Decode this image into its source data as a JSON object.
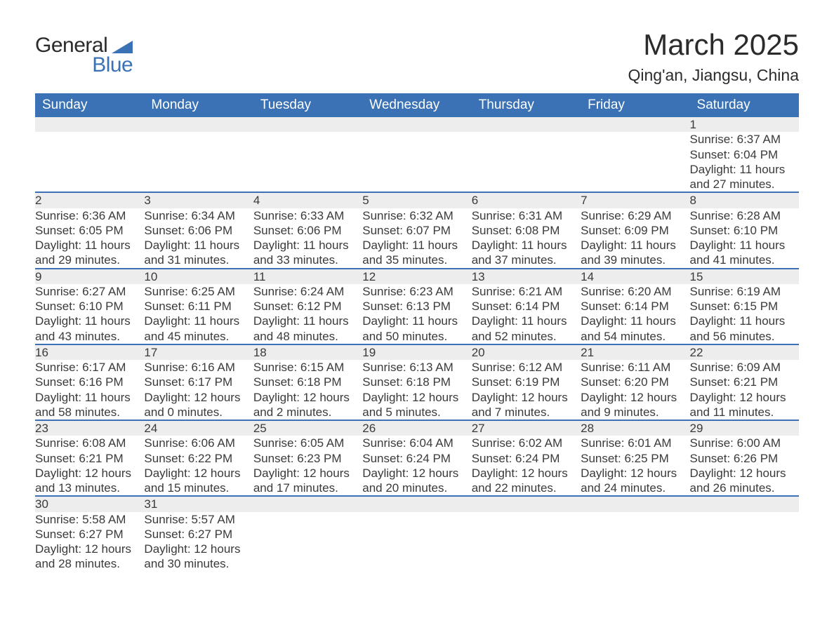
{
  "logo": {
    "line1": "General",
    "line2": "Blue"
  },
  "title": {
    "month": "March 2025",
    "location": "Qing'an, Jiangsu, China"
  },
  "columns": [
    "Sunday",
    "Monday",
    "Tuesday",
    "Wednesday",
    "Thursday",
    "Friday",
    "Saturday"
  ],
  "colors": {
    "header_bg": "#3a72b5",
    "header_text": "#ffffff",
    "daynum_bg": "#ededed",
    "row_divider": "#3a72b5",
    "body_text": "#3a3a3a",
    "logo_blue": "#3a72b5"
  },
  "typography": {
    "title_fontsize_pt": 32,
    "location_fontsize_pt": 17,
    "header_fontsize_pt": 14,
    "cell_fontsize_pt": 13
  },
  "weeks": [
    [
      null,
      null,
      null,
      null,
      null,
      null,
      {
        "day": "1",
        "sunrise": "Sunrise: 6:37 AM",
        "sunset": "Sunset: 6:04 PM",
        "daylight1": "Daylight: 11 hours",
        "daylight2": "and 27 minutes."
      }
    ],
    [
      {
        "day": "2",
        "sunrise": "Sunrise: 6:36 AM",
        "sunset": "Sunset: 6:05 PM",
        "daylight1": "Daylight: 11 hours",
        "daylight2": "and 29 minutes."
      },
      {
        "day": "3",
        "sunrise": "Sunrise: 6:34 AM",
        "sunset": "Sunset: 6:06 PM",
        "daylight1": "Daylight: 11 hours",
        "daylight2": "and 31 minutes."
      },
      {
        "day": "4",
        "sunrise": "Sunrise: 6:33 AM",
        "sunset": "Sunset: 6:06 PM",
        "daylight1": "Daylight: 11 hours",
        "daylight2": "and 33 minutes."
      },
      {
        "day": "5",
        "sunrise": "Sunrise: 6:32 AM",
        "sunset": "Sunset: 6:07 PM",
        "daylight1": "Daylight: 11 hours",
        "daylight2": "and 35 minutes."
      },
      {
        "day": "6",
        "sunrise": "Sunrise: 6:31 AM",
        "sunset": "Sunset: 6:08 PM",
        "daylight1": "Daylight: 11 hours",
        "daylight2": "and 37 minutes."
      },
      {
        "day": "7",
        "sunrise": "Sunrise: 6:29 AM",
        "sunset": "Sunset: 6:09 PM",
        "daylight1": "Daylight: 11 hours",
        "daylight2": "and 39 minutes."
      },
      {
        "day": "8",
        "sunrise": "Sunrise: 6:28 AM",
        "sunset": "Sunset: 6:10 PM",
        "daylight1": "Daylight: 11 hours",
        "daylight2": "and 41 minutes."
      }
    ],
    [
      {
        "day": "9",
        "sunrise": "Sunrise: 6:27 AM",
        "sunset": "Sunset: 6:10 PM",
        "daylight1": "Daylight: 11 hours",
        "daylight2": "and 43 minutes."
      },
      {
        "day": "10",
        "sunrise": "Sunrise: 6:25 AM",
        "sunset": "Sunset: 6:11 PM",
        "daylight1": "Daylight: 11 hours",
        "daylight2": "and 45 minutes."
      },
      {
        "day": "11",
        "sunrise": "Sunrise: 6:24 AM",
        "sunset": "Sunset: 6:12 PM",
        "daylight1": "Daylight: 11 hours",
        "daylight2": "and 48 minutes."
      },
      {
        "day": "12",
        "sunrise": "Sunrise: 6:23 AM",
        "sunset": "Sunset: 6:13 PM",
        "daylight1": "Daylight: 11 hours",
        "daylight2": "and 50 minutes."
      },
      {
        "day": "13",
        "sunrise": "Sunrise: 6:21 AM",
        "sunset": "Sunset: 6:14 PM",
        "daylight1": "Daylight: 11 hours",
        "daylight2": "and 52 minutes."
      },
      {
        "day": "14",
        "sunrise": "Sunrise: 6:20 AM",
        "sunset": "Sunset: 6:14 PM",
        "daylight1": "Daylight: 11 hours",
        "daylight2": "and 54 minutes."
      },
      {
        "day": "15",
        "sunrise": "Sunrise: 6:19 AM",
        "sunset": "Sunset: 6:15 PM",
        "daylight1": "Daylight: 11 hours",
        "daylight2": "and 56 minutes."
      }
    ],
    [
      {
        "day": "16",
        "sunrise": "Sunrise: 6:17 AM",
        "sunset": "Sunset: 6:16 PM",
        "daylight1": "Daylight: 11 hours",
        "daylight2": "and 58 minutes."
      },
      {
        "day": "17",
        "sunrise": "Sunrise: 6:16 AM",
        "sunset": "Sunset: 6:17 PM",
        "daylight1": "Daylight: 12 hours",
        "daylight2": "and 0 minutes."
      },
      {
        "day": "18",
        "sunrise": "Sunrise: 6:15 AM",
        "sunset": "Sunset: 6:18 PM",
        "daylight1": "Daylight: 12 hours",
        "daylight2": "and 2 minutes."
      },
      {
        "day": "19",
        "sunrise": "Sunrise: 6:13 AM",
        "sunset": "Sunset: 6:18 PM",
        "daylight1": "Daylight: 12 hours",
        "daylight2": "and 5 minutes."
      },
      {
        "day": "20",
        "sunrise": "Sunrise: 6:12 AM",
        "sunset": "Sunset: 6:19 PM",
        "daylight1": "Daylight: 12 hours",
        "daylight2": "and 7 minutes."
      },
      {
        "day": "21",
        "sunrise": "Sunrise: 6:11 AM",
        "sunset": "Sunset: 6:20 PM",
        "daylight1": "Daylight: 12 hours",
        "daylight2": "and 9 minutes."
      },
      {
        "day": "22",
        "sunrise": "Sunrise: 6:09 AM",
        "sunset": "Sunset: 6:21 PM",
        "daylight1": "Daylight: 12 hours",
        "daylight2": "and 11 minutes."
      }
    ],
    [
      {
        "day": "23",
        "sunrise": "Sunrise: 6:08 AM",
        "sunset": "Sunset: 6:21 PM",
        "daylight1": "Daylight: 12 hours",
        "daylight2": "and 13 minutes."
      },
      {
        "day": "24",
        "sunrise": "Sunrise: 6:06 AM",
        "sunset": "Sunset: 6:22 PM",
        "daylight1": "Daylight: 12 hours",
        "daylight2": "and 15 minutes."
      },
      {
        "day": "25",
        "sunrise": "Sunrise: 6:05 AM",
        "sunset": "Sunset: 6:23 PM",
        "daylight1": "Daylight: 12 hours",
        "daylight2": "and 17 minutes."
      },
      {
        "day": "26",
        "sunrise": "Sunrise: 6:04 AM",
        "sunset": "Sunset: 6:24 PM",
        "daylight1": "Daylight: 12 hours",
        "daylight2": "and 20 minutes."
      },
      {
        "day": "27",
        "sunrise": "Sunrise: 6:02 AM",
        "sunset": "Sunset: 6:24 PM",
        "daylight1": "Daylight: 12 hours",
        "daylight2": "and 22 minutes."
      },
      {
        "day": "28",
        "sunrise": "Sunrise: 6:01 AM",
        "sunset": "Sunset: 6:25 PM",
        "daylight1": "Daylight: 12 hours",
        "daylight2": "and 24 minutes."
      },
      {
        "day": "29",
        "sunrise": "Sunrise: 6:00 AM",
        "sunset": "Sunset: 6:26 PM",
        "daylight1": "Daylight: 12 hours",
        "daylight2": "and 26 minutes."
      }
    ],
    [
      {
        "day": "30",
        "sunrise": "Sunrise: 5:58 AM",
        "sunset": "Sunset: 6:27 PM",
        "daylight1": "Daylight: 12 hours",
        "daylight2": "and 28 minutes."
      },
      {
        "day": "31",
        "sunrise": "Sunrise: 5:57 AM",
        "sunset": "Sunset: 6:27 PM",
        "daylight1": "Daylight: 12 hours",
        "daylight2": "and 30 minutes."
      },
      null,
      null,
      null,
      null,
      null
    ]
  ]
}
